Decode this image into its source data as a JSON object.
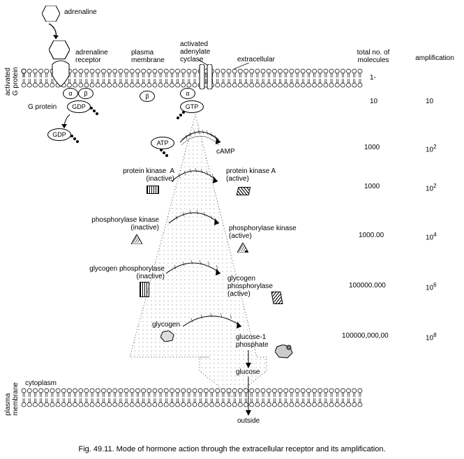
{
  "title_top": "adrenaline",
  "top_labels": {
    "adrenaline_receptor": "adrenaline\nreceptor",
    "plasma_membrane": "plasma\nmembrane",
    "activated_adenylate_cyclase": "activated\nadenylate\ncyclase",
    "extracellular": "extracellular"
  },
  "columns": {
    "molecules_head": "total no. of\nmolecules",
    "amp_head": "amplification"
  },
  "side_labels": {
    "activated_g_protein": "activated\nG protein",
    "plasma_membrane_bottom": "plasma\nmembrane"
  },
  "g_protein": "G protein",
  "subs": {
    "alpha": "α",
    "beta": "β"
  },
  "nucleotides": {
    "gdp": "GDP",
    "gtp": "GTP",
    "atp": "ATP"
  },
  "camp": "cAMP",
  "steps": [
    {
      "left": "protein kinase  A\n(inactive)",
      "right": "protein kinase A\n(active)"
    },
    {
      "left": "phosphorylase kinase\n(inactive)",
      "right": "phosphorylase kinase\n(active)"
    },
    {
      "left": "glycogen phosphorylase\n(inactive)",
      "right": "glycogen\nphosphorylase\n(active)"
    },
    {
      "left": "glycogen",
      "right": "glucose-1\nphosphate"
    }
  ],
  "glucose": "glucose",
  "cytoplasm": "cytoplasm",
  "outside": "outside",
  "molecules": [
    "1-",
    "10",
    "1000",
    "1000",
    "1000.00",
    "100000.000",
    "100000,000,00"
  ],
  "amplification": [
    "",
    "10",
    "10",
    "10",
    "10",
    "10",
    "10"
  ],
  "amp_exp": [
    "",
    "",
    "2",
    "2",
    "4",
    "6",
    "8"
  ],
  "caption": "Fig. 49.11. Mode of hormone action through the extracellular receptor and its amplification.",
  "style": {
    "bg": "#ffffff",
    "fg": "#000000",
    "dot_fill_light": "#e8e8e8"
  }
}
